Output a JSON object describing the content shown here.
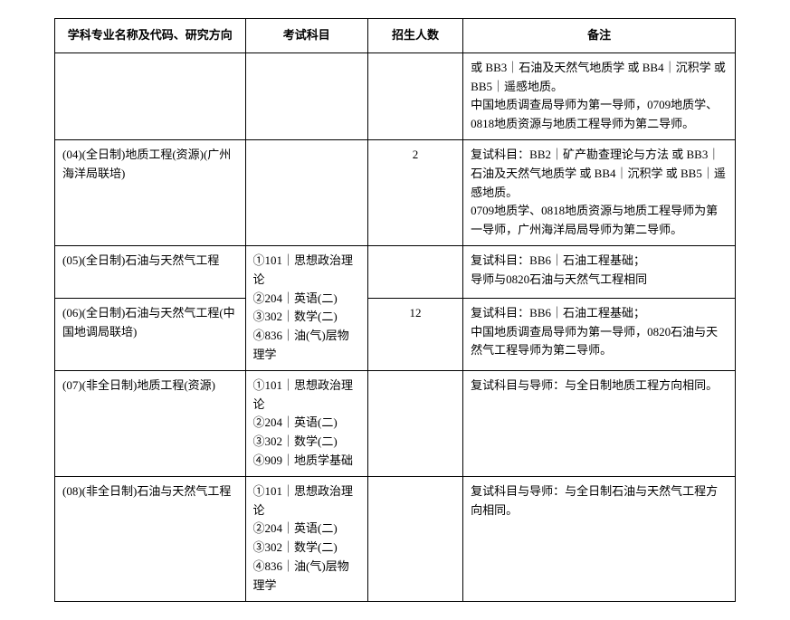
{
  "headers": {
    "col1": "学科专业名称及代码、研究方向",
    "col2": "考试科目",
    "col3": "招生人数",
    "col4": "备注"
  },
  "rows": [
    {
      "name": "",
      "exam": "",
      "count": "",
      "remark": "或 BB3｜石油及天然气地质学 或 BB4｜沉积学 或 BB5｜遥感地质。\n中国地质调查局导师为第一导师，0709地质学、0818地质资源与地质工程导师为第二导师。"
    },
    {
      "name": "(04)(全日制)地质工程(资源)(广州海洋局联培)",
      "exam": "",
      "count": "2",
      "remark": "复试科目：BB2｜矿产勘查理论与方法 或 BB3｜石油及天然气地质学 或 BB4｜沉积学 或 BB5｜遥感地质。\n0709地质学、0818地质资源与地质工程导师为第一导师，广州海洋局局导师为第二导师。"
    },
    {
      "name": "(05)(全日制)石油与天然气工程",
      "exam": "①101｜思想政治理论\n②204｜英语(二)\n③302｜数学(二)\n④836｜油(气)层物理学",
      "count": "",
      "remark": "复试科目：BB6｜石油工程基础；\n导师与0820石油与天然气工程相同",
      "examRowspan": 2
    },
    {
      "name": "(06)(全日制)石油与天然气工程(中国地调局联培)",
      "count": "12",
      "remark": "复试科目：BB6｜石油工程基础；\n中国地质调查局导师为第一导师，0820石油与天然气工程导师为第二导师。",
      "skipExam": true
    },
    {
      "name": "(07)(非全日制)地质工程(资源)",
      "exam": "①101｜思想政治理论\n②204｜英语(二)\n③302｜数学(二)\n④909｜地质学基础",
      "count": "",
      "remark": "复试科目与导师：与全日制地质工程方向相同。"
    },
    {
      "name": "(08)(非全日制)石油与天然气工程",
      "exam": "①101｜思想政治理论\n②204｜英语(二)\n③302｜数学(二)\n④836｜油(气)层物理学",
      "count": "",
      "remark": "复试科目与导师：与全日制石油与天然气工程方向相同。"
    }
  ]
}
